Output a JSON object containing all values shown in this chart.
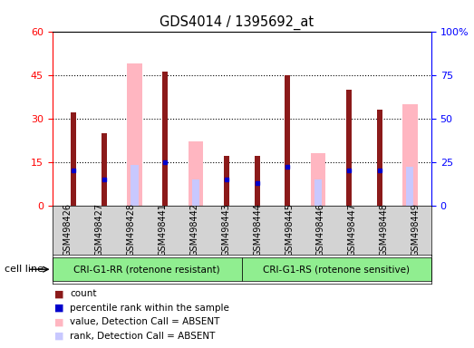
{
  "title": "GDS4014 / 1395692_at",
  "samples": [
    "GSM498426",
    "GSM498427",
    "GSM498428",
    "GSM498441",
    "GSM498442",
    "GSM498443",
    "GSM498444",
    "GSM498445",
    "GSM498446",
    "GSM498447",
    "GSM498448",
    "GSM498449"
  ],
  "count_values": [
    32,
    25,
    0,
    46,
    0,
    17,
    17,
    45,
    0,
    40,
    33,
    0
  ],
  "rank_values": [
    20,
    15,
    0,
    25,
    0,
    15,
    13,
    22,
    0,
    20,
    20,
    0
  ],
  "absent_value_bars": [
    0,
    0,
    49,
    0,
    22,
    0,
    0,
    0,
    18,
    0,
    0,
    35
  ],
  "absent_rank_bars": [
    0,
    0,
    23,
    0,
    15,
    0,
    0,
    0,
    15,
    0,
    0,
    22
  ],
  "group1_label": "CRI-G1-RR (rotenone resistant)",
  "group2_label": "CRI-G1-RS (rotenone sensitive)",
  "cell_line_label": "cell line",
  "ylim_left": [
    0,
    60
  ],
  "ylim_right": [
    0,
    100
  ],
  "yticks_left": [
    0,
    15,
    30,
    45,
    60
  ],
  "yticks_right": [
    0,
    25,
    50,
    75,
    100
  ],
  "ytick_labels_left": [
    "0",
    "15",
    "30",
    "45",
    "60"
  ],
  "ytick_labels_right": [
    "0",
    "25",
    "50",
    "75",
    "100%"
  ],
  "color_count": "#8B1A1A",
  "color_rank": "#0000CC",
  "color_absent_value": "#FFB6C1",
  "color_absent_rank": "#C8C8FF",
  "bar_width": 0.35,
  "legend_labels": [
    "count",
    "percentile rank within the sample",
    "value, Detection Call = ABSENT",
    "rank, Detection Call = ABSENT"
  ],
  "legend_colors": [
    "#8B1A1A",
    "#0000CC",
    "#FFB6C1",
    "#C8C8FF"
  ],
  "group1_color": "#90EE90",
  "group2_color": "#90EE90",
  "bg_color": "#D3D3D3",
  "n_group1": 6,
  "n_group2": 6
}
